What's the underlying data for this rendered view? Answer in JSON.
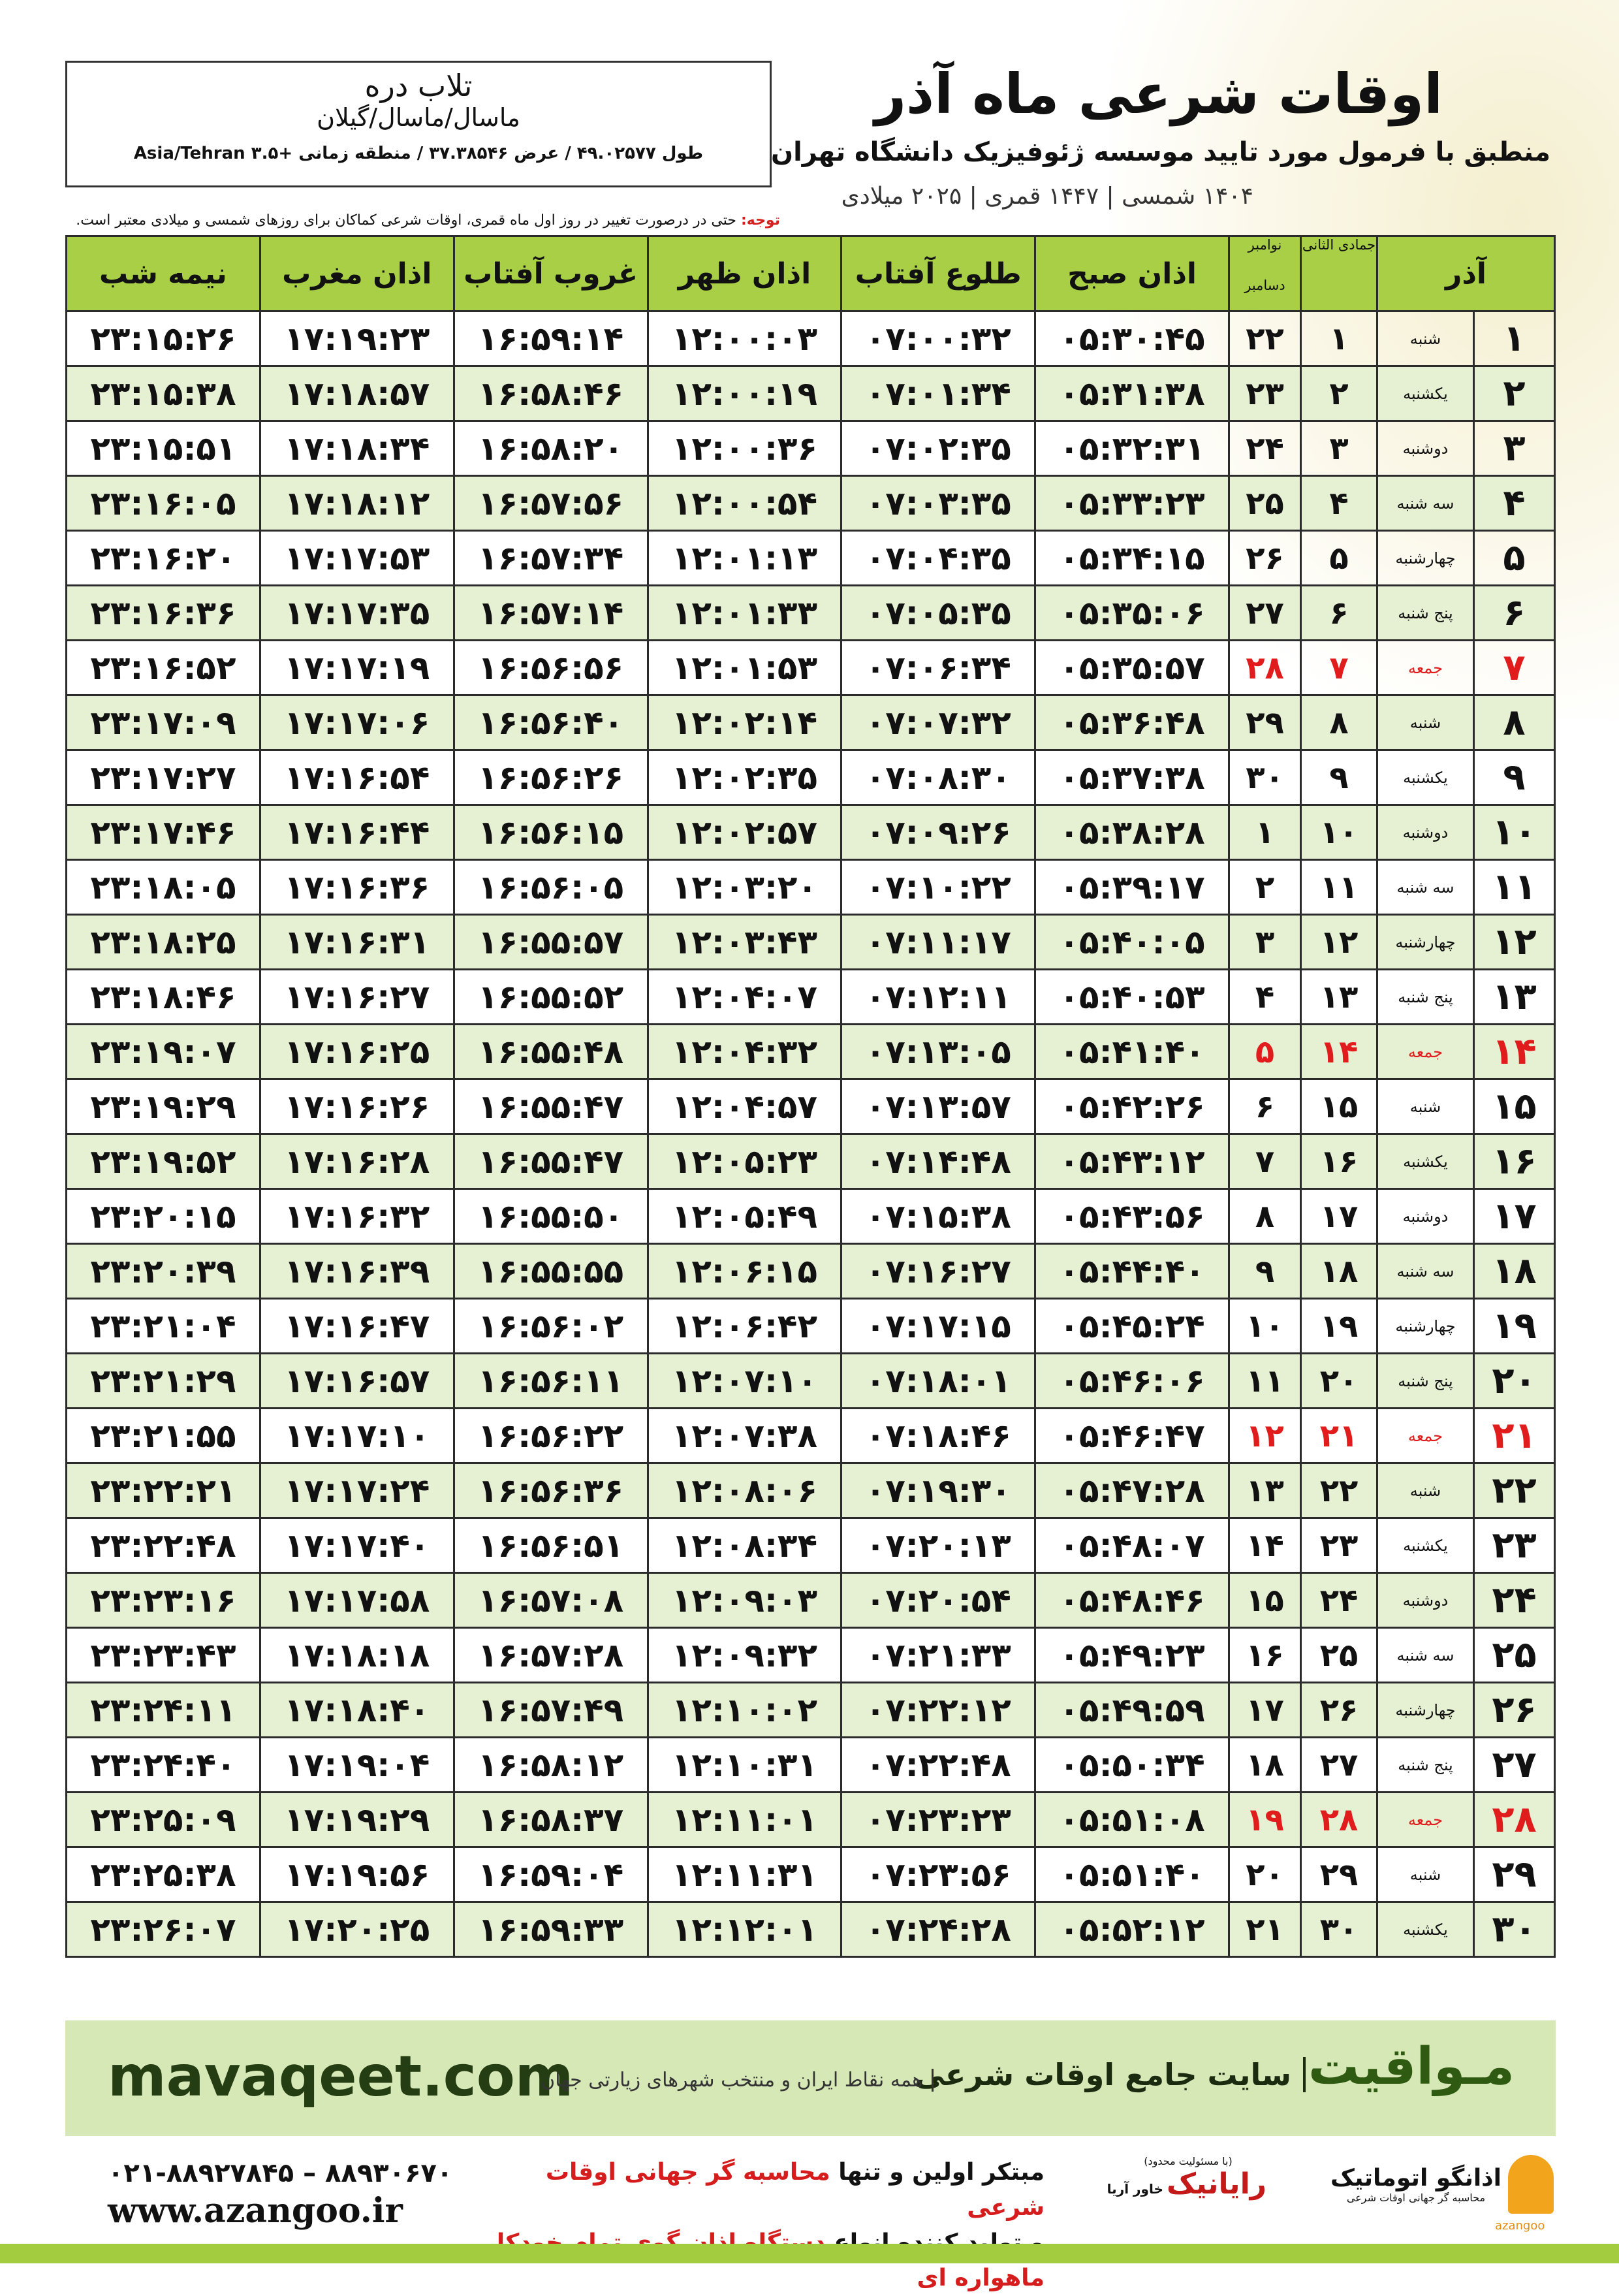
{
  "header": {
    "title": "اوقات شرعی ماه آذر",
    "subtitle": "منطبق با فرمول مورد تایید موسسه ژئوفیزیک دانشگاه تهران",
    "dates": "۱۴۰۴ شمسی | ۱۴۴۷ قمری | ۲۰۲۵ میلادی"
  },
  "location": {
    "name": "تلاب دره",
    "region": "ماسال/ماسال/گیلان",
    "coords": "طول ۴۹.۰۲۵۷۷ / عرض ۳۷.۳۸۵۴۶ / منطقه زمانی +۳.۵ Asia/Tehran"
  },
  "note": {
    "label": "توجه:",
    "text": "حتی در درصورت تغییر در روز اول ماه قمری، اوقات شرعی کماکان برای روزهای شمسی و میلادی معتبر است."
  },
  "table": {
    "columns": [
      "آذر",
      "جمادی الثانی",
      "نوامبر",
      "دسامبر",
      "اذان صبح",
      "طلوع آفتاب",
      "اذان ظهر",
      "غروب آفتاب",
      "اذان مغرب",
      "نیمه شب"
    ],
    "rows": [
      [
        "۱",
        "شنبه",
        "۱",
        "۲۲",
        "۰۵:۳۰:۴۵",
        "۰۷:۰۰:۳۲",
        "۱۲:۰۰:۰۳",
        "۱۶:۵۹:۱۴",
        "۱۷:۱۹:۲۳",
        "۲۳:۱۵:۲۶"
      ],
      [
        "۲",
        "یکشنبه",
        "۲",
        "۲۳",
        "۰۵:۳۱:۳۸",
        "۰۷:۰۱:۳۴",
        "۱۲:۰۰:۱۹",
        "۱۶:۵۸:۴۶",
        "۱۷:۱۸:۵۷",
        "۲۳:۱۵:۳۸"
      ],
      [
        "۳",
        "دوشنبه",
        "۳",
        "۲۴",
        "۰۵:۳۲:۳۱",
        "۰۷:۰۲:۳۵",
        "۱۲:۰۰:۳۶",
        "۱۶:۵۸:۲۰",
        "۱۷:۱۸:۳۴",
        "۲۳:۱۵:۵۱"
      ],
      [
        "۴",
        "سه شنبه",
        "۴",
        "۲۵",
        "۰۵:۳۳:۲۳",
        "۰۷:۰۳:۳۵",
        "۱۲:۰۰:۵۴",
        "۱۶:۵۷:۵۶",
        "۱۷:۱۸:۱۲",
        "۲۳:۱۶:۰۵"
      ],
      [
        "۵",
        "چهارشنبه",
        "۵",
        "۲۶",
        "۰۵:۳۴:۱۵",
        "۰۷:۰۴:۳۵",
        "۱۲:۰۱:۱۳",
        "۱۶:۵۷:۳۴",
        "۱۷:۱۷:۵۳",
        "۲۳:۱۶:۲۰"
      ],
      [
        "۶",
        "پنج شنبه",
        "۶",
        "۲۷",
        "۰۵:۳۵:۰۶",
        "۰۷:۰۵:۳۵",
        "۱۲:۰۱:۳۳",
        "۱۶:۵۷:۱۴",
        "۱۷:۱۷:۳۵",
        "۲۳:۱۶:۳۶"
      ],
      [
        "۷",
        "جمعه",
        "۷",
        "۲۸",
        "۰۵:۳۵:۵۷",
        "۰۷:۰۶:۳۴",
        "۱۲:۰۱:۵۳",
        "۱۶:۵۶:۵۶",
        "۱۷:۱۷:۱۹",
        "۲۳:۱۶:۵۲"
      ],
      [
        "۸",
        "شنبه",
        "۸",
        "۲۹",
        "۰۵:۳۶:۴۸",
        "۰۷:۰۷:۳۲",
        "۱۲:۰۲:۱۴",
        "۱۶:۵۶:۴۰",
        "۱۷:۱۷:۰۶",
        "۲۳:۱۷:۰۹"
      ],
      [
        "۹",
        "یکشنبه",
        "۹",
        "۳۰",
        "۰۵:۳۷:۳۸",
        "۰۷:۰۸:۳۰",
        "۱۲:۰۲:۳۵",
        "۱۶:۵۶:۲۶",
        "۱۷:۱۶:۵۴",
        "۲۳:۱۷:۲۷"
      ],
      [
        "۱۰",
        "دوشنبه",
        "۱۰",
        "۱",
        "۰۵:۳۸:۲۸",
        "۰۷:۰۹:۲۶",
        "۱۲:۰۲:۵۷",
        "۱۶:۵۶:۱۵",
        "۱۷:۱۶:۴۴",
        "۲۳:۱۷:۴۶"
      ],
      [
        "۱۱",
        "سه شنبه",
        "۱۱",
        "۲",
        "۰۵:۳۹:۱۷",
        "۰۷:۱۰:۲۲",
        "۱۲:۰۳:۲۰",
        "۱۶:۵۶:۰۵",
        "۱۷:۱۶:۳۶",
        "۲۳:۱۸:۰۵"
      ],
      [
        "۱۲",
        "چهارشنبه",
        "۱۲",
        "۳",
        "۰۵:۴۰:۰۵",
        "۰۷:۱۱:۱۷",
        "۱۲:۰۳:۴۳",
        "۱۶:۵۵:۵۷",
        "۱۷:۱۶:۳۱",
        "۲۳:۱۸:۲۵"
      ],
      [
        "۱۳",
        "پنج شنبه",
        "۱۳",
        "۴",
        "۰۵:۴۰:۵۳",
        "۰۷:۱۲:۱۱",
        "۱۲:۰۴:۰۷",
        "۱۶:۵۵:۵۲",
        "۱۷:۱۶:۲۷",
        "۲۳:۱۸:۴۶"
      ],
      [
        "۱۴",
        "جمعه",
        "۱۴",
        "۵",
        "۰۵:۴۱:۴۰",
        "۰۷:۱۳:۰۵",
        "۱۲:۰۴:۳۲",
        "۱۶:۵۵:۴۸",
        "۱۷:۱۶:۲۵",
        "۲۳:۱۹:۰۷"
      ],
      [
        "۱۵",
        "شنبه",
        "۱۵",
        "۶",
        "۰۵:۴۲:۲۶",
        "۰۷:۱۳:۵۷",
        "۱۲:۰۴:۵۷",
        "۱۶:۵۵:۴۷",
        "۱۷:۱۶:۲۶",
        "۲۳:۱۹:۲۹"
      ],
      [
        "۱۶",
        "یکشنبه",
        "۱۶",
        "۷",
        "۰۵:۴۳:۱۲",
        "۰۷:۱۴:۴۸",
        "۱۲:۰۵:۲۳",
        "۱۶:۵۵:۴۷",
        "۱۷:۱۶:۲۸",
        "۲۳:۱۹:۵۲"
      ],
      [
        "۱۷",
        "دوشنبه",
        "۱۷",
        "۸",
        "۰۵:۴۳:۵۶",
        "۰۷:۱۵:۳۸",
        "۱۲:۰۵:۴۹",
        "۱۶:۵۵:۵۰",
        "۱۷:۱۶:۳۲",
        "۲۳:۲۰:۱۵"
      ],
      [
        "۱۸",
        "سه شنبه",
        "۱۸",
        "۹",
        "۰۵:۴۴:۴۰",
        "۰۷:۱۶:۲۷",
        "۱۲:۰۶:۱۵",
        "۱۶:۵۵:۵۵",
        "۱۷:۱۶:۳۹",
        "۲۳:۲۰:۳۹"
      ],
      [
        "۱۹",
        "چهارشنبه",
        "۱۹",
        "۱۰",
        "۰۵:۴۵:۲۴",
        "۰۷:۱۷:۱۵",
        "۱۲:۰۶:۴۲",
        "۱۶:۵۶:۰۲",
        "۱۷:۱۶:۴۷",
        "۲۳:۲۱:۰۴"
      ],
      [
        "۲۰",
        "پنج شنبه",
        "۲۰",
        "۱۱",
        "۰۵:۴۶:۰۶",
        "۰۷:۱۸:۰۱",
        "۱۲:۰۷:۱۰",
        "۱۶:۵۶:۱۱",
        "۱۷:۱۶:۵۷",
        "۲۳:۲۱:۲۹"
      ],
      [
        "۲۱",
        "جمعه",
        "۲۱",
        "۱۲",
        "۰۵:۴۶:۴۷",
        "۰۷:۱۸:۴۶",
        "۱۲:۰۷:۳۸",
        "۱۶:۵۶:۲۲",
        "۱۷:۱۷:۱۰",
        "۲۳:۲۱:۵۵"
      ],
      [
        "۲۲",
        "شنبه",
        "۲۲",
        "۱۳",
        "۰۵:۴۷:۲۸",
        "۰۷:۱۹:۳۰",
        "۱۲:۰۸:۰۶",
        "۱۶:۵۶:۳۶",
        "۱۷:۱۷:۲۴",
        "۲۳:۲۲:۲۱"
      ],
      [
        "۲۳",
        "یکشنبه",
        "۲۳",
        "۱۴",
        "۰۵:۴۸:۰۷",
        "۰۷:۲۰:۱۳",
        "۱۲:۰۸:۳۴",
        "۱۶:۵۶:۵۱",
        "۱۷:۱۷:۴۰",
        "۲۳:۲۲:۴۸"
      ],
      [
        "۲۴",
        "دوشنبه",
        "۲۴",
        "۱۵",
        "۰۵:۴۸:۴۶",
        "۰۷:۲۰:۵۴",
        "۱۲:۰۹:۰۳",
        "۱۶:۵۷:۰۸",
        "۱۷:۱۷:۵۸",
        "۲۳:۲۳:۱۶"
      ],
      [
        "۲۵",
        "سه شنبه",
        "۲۵",
        "۱۶",
        "۰۵:۴۹:۲۳",
        "۰۷:۲۱:۳۳",
        "۱۲:۰۹:۳۲",
        "۱۶:۵۷:۲۸",
        "۱۷:۱۸:۱۸",
        "۲۳:۲۳:۴۳"
      ],
      [
        "۲۶",
        "چهارشنبه",
        "۲۶",
        "۱۷",
        "۰۵:۴۹:۵۹",
        "۰۷:۲۲:۱۲",
        "۱۲:۱۰:۰۲",
        "۱۶:۵۷:۴۹",
        "۱۷:۱۸:۴۰",
        "۲۳:۲۴:۱۱"
      ],
      [
        "۲۷",
        "پنج شنبه",
        "۲۷",
        "۱۸",
        "۰۵:۵۰:۳۴",
        "۰۷:۲۲:۴۸",
        "۱۲:۱۰:۳۱",
        "۱۶:۵۸:۱۲",
        "۱۷:۱۹:۰۴",
        "۲۳:۲۴:۴۰"
      ],
      [
        "۲۸",
        "جمعه",
        "۲۸",
        "۱۹",
        "۰۵:۵۱:۰۸",
        "۰۷:۲۳:۲۳",
        "۱۲:۱۱:۰۱",
        "۱۶:۵۸:۳۷",
        "۱۷:۱۹:۲۹",
        "۲۳:۲۵:۰۹"
      ],
      [
        "۲۹",
        "شنبه",
        "۲۹",
        "۲۰",
        "۰۵:۵۱:۴۰",
        "۰۷:۲۳:۵۶",
        "۱۲:۱۱:۳۱",
        "۱۶:۵۹:۰۴",
        "۱۷:۱۹:۵۶",
        "۲۳:۲۵:۳۸"
      ],
      [
        "۳۰",
        "یکشنبه",
        "۳۰",
        "۲۱",
        "۰۵:۵۲:۱۲",
        "۰۷:۲۴:۲۸",
        "۱۲:۱۲:۰۱",
        "۱۶:۵۹:۳۳",
        "۱۷:۲۰:۲۵",
        "۲۳:۲۶:۰۷"
      ]
    ]
  },
  "footer": {
    "brand": "مـواقیت",
    "tagline": "سایت جامع اوقات شرعی",
    "coverage": "همه نقاط ایران و منتخب شهرهای زیارتی جهان",
    "site": "mavaqeet.com",
    "phone": "۰۲۱-۸۸۹۲۷۸۴۵ – ۸۸۹۳۰۶۷۰",
    "web": "www.azangoo.ir",
    "line1a": "مبتکر اولین و تنها",
    "line1b": "محاسبه گر جهانی اوقات شرعی",
    "line2a": "و تولید کننده انواع",
    "line2b": "دستگاه اذان گوی تمام خودکار ماهواره ای",
    "rayanik_note": "(با مسئولیت محدود)",
    "rayanik": "رایانیک",
    "khavar": "خاور آریا",
    "azangoo": "اذانگو اتوماتیک",
    "azangoo_sub": "محاسبه گر جهانی اوقات شرعی",
    "azangoo_en": "azangoo"
  }
}
